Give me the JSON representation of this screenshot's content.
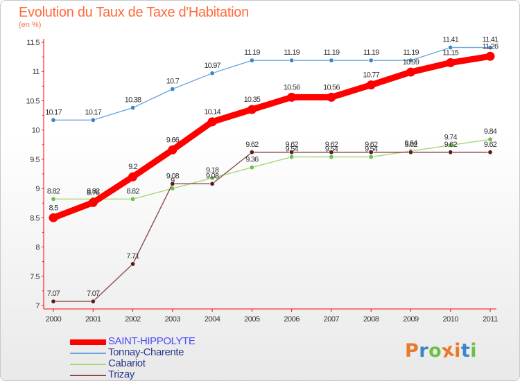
{
  "header": {
    "title": "Evolution du Taux de Taxe d'Habitation",
    "subtitle": "(en %)"
  },
  "chart_data": {
    "type": "line",
    "title": "Evolution du Taux de Taxe d'Habitation",
    "ylabel": "(en %)",
    "xlabel": "",
    "x": [
      "2000",
      "2001",
      "2002",
      "2003",
      "2004",
      "2005",
      "2006",
      "2007",
      "2008",
      "2009",
      "2010",
      "2011"
    ],
    "ylim": [
      7,
      11.5
    ],
    "yticks": [
      "7",
      "7.5",
      "8",
      "8.5",
      "9",
      "9.5",
      "10",
      "10.5",
      "11",
      "11.5"
    ],
    "ytick_values": [
      7,
      7.5,
      8,
      8.5,
      9,
      9.5,
      10,
      10.5,
      11,
      11.5
    ],
    "grid": false,
    "legend_position": "bottom-left",
    "series": [
      {
        "name": "Tonnay-Charente",
        "color": "#6fa8dc",
        "marker_color": "#3d85c6",
        "values": [
          10.17,
          10.17,
          10.38,
          10.7,
          10.97,
          11.19,
          11.19,
          11.19,
          11.19,
          11.19,
          11.41,
          11.41
        ],
        "labels": [
          "10.17",
          "10.17",
          "10.38",
          "10.7",
          "10.97",
          "11.19",
          "11.19",
          "11.19",
          "11.19",
          "11.19",
          "11.41",
          "11.41"
        ]
      },
      {
        "name": "Cabariot",
        "color": "#a8d878",
        "marker_color": "#6cc04a",
        "values": [
          8.82,
          8.82,
          8.82,
          9,
          9.18,
          9.36,
          9.54,
          9.54,
          9.54,
          9.64,
          9.74,
          9.84
        ],
        "labels": [
          "8.82",
          "8.82",
          "8.82",
          "9",
          "9.18",
          "9.36",
          "9.54",
          "9.54",
          "9.54",
          "9.64",
          "9.74",
          "9.84"
        ]
      },
      {
        "name": "Trizay",
        "color": "#8b4a4a",
        "marker_color": "#5a1a1a",
        "values": [
          7.07,
          7.07,
          7.71,
          9.08,
          9.08,
          9.62,
          9.62,
          9.62,
          9.62,
          9.62,
          9.62,
          9.62
        ],
        "labels": [
          "7.07",
          "7.07",
          "7.71",
          "9.08",
          "9.08",
          "9.62",
          "9.62",
          "9.62",
          "9.62",
          "9.62",
          "9.62",
          "9.62"
        ]
      },
      {
        "name": "SAINT-HIPPOLYTE",
        "color": "#ff0000",
        "marker_color": "#ff0000",
        "values": [
          8.5,
          8.76,
          9.2,
          9.66,
          10.14,
          10.35,
          10.56,
          10.56,
          10.77,
          10.99,
          11.15,
          11.26
        ],
        "labels": [
          "8.5",
          "8.76",
          "9.2",
          "9.66",
          "10.14",
          "10.35",
          "10.56",
          "10.56",
          "10.77",
          "10.99",
          "11.15",
          "11.26"
        ]
      }
    ]
  },
  "legend": {
    "items": [
      {
        "label": "SAINT-HIPPOLYTE",
        "color": "#ff0000",
        "text_color": "#4a4aff"
      },
      {
        "label": "Tonnay-Charente",
        "color": "#6fa8dc",
        "text_color": "#2a3a8a"
      },
      {
        "label": "Cabariot",
        "color": "#a8d878",
        "text_color": "#2a3a8a"
      },
      {
        "label": "Trizay",
        "color": "#8b4a4a",
        "text_color": "#2a3a8a"
      }
    ]
  },
  "logo": {
    "text": "Proxiti",
    "colors": [
      "#e8782a",
      "#3d85c6",
      "#6cc04a",
      "#e8782a",
      "#e8782a",
      "#3d85c6",
      "#6cc04a"
    ]
  }
}
